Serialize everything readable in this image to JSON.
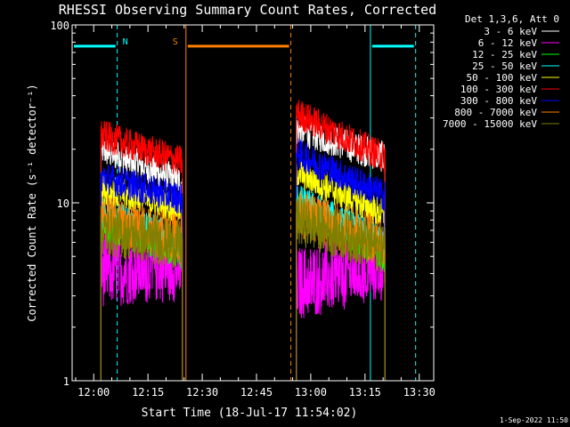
{
  "chart_data": {
    "type": "line",
    "title": "RHESSI Observing Summary Count Rates, Corrected",
    "xlabel": "Start Time (18-Jul-17 11:54:02)",
    "ylabel": "Corrected Count Rate (s⁻¹ detector⁻¹)",
    "y_scale": "log",
    "ylim": [
      1,
      100
    ],
    "xlim": [
      "11:54:02",
      "13:34:00"
    ],
    "x_ticks": [
      "12:00",
      "12:15",
      "12:30",
      "12:45",
      "13:00",
      "13:15",
      "13:30"
    ],
    "y_ticks": [
      "1",
      "10",
      "100"
    ],
    "grid": false,
    "legend_title": "Det 1,3,6, Att 0",
    "legend_position": "top-right",
    "footer": "1-Sep-2022 11:50",
    "flags": [
      {
        "label": "N",
        "color": "#00ffff",
        "level": 76,
        "segments": [
          [
            "11:54:02",
            "12:06:30"
          ],
          [
            "13:16:30",
            "13:29:00"
          ]
        ]
      },
      {
        "label": "S",
        "color": "#ff8000",
        "level": 76,
        "segments": [
          [
            "12:25:30",
            "12:54:30"
          ]
        ]
      }
    ],
    "vlines": [
      {
        "x": "11:54:02",
        "color": "#00ffff",
        "style": "solid"
      },
      {
        "x": "12:06:30",
        "color": "#00ffff",
        "style": "dashed"
      },
      {
        "x": "12:25:30",
        "color": "#ff8000",
        "style": "solid"
      },
      {
        "x": "12:54:30",
        "color": "#ff8000",
        "style": "dashed"
      },
      {
        "x": "13:16:30",
        "color": "#00ffff",
        "style": "solid"
      },
      {
        "x": "13:29:00",
        "color": "#00ffff",
        "style": "dashed"
      }
    ],
    "intervals": [
      [
        "12:02:00",
        "12:24:30"
      ],
      [
        "12:56:00",
        "13:20:30"
      ]
    ],
    "series": [
      {
        "name": "3 - 6 keV",
        "color": "#ffffff",
        "start": [
          20,
          26
        ],
        "end": [
          13,
          18
        ]
      },
      {
        "name": "6 - 12 keV",
        "color": "#ff00ff",
        "start": [
          4.2,
          3.5
        ],
        "end": [
          4.5,
          4.5
        ]
      },
      {
        "name": "12 - 25 keV",
        "color": "#00ff00",
        "start": [
          7.5,
          10
        ],
        "end": [
          5.2,
          5.0
        ]
      },
      {
        "name": "25 - 50 keV",
        "color": "#00ffff",
        "start": [
          8.8,
          10.5
        ],
        "end": [
          6.2,
          6.0
        ]
      },
      {
        "name": "50 - 100 keV",
        "color": "#ffff00",
        "start": [
          12,
          15
        ],
        "end": [
          9.2,
          8.5
        ]
      },
      {
        "name": "100 - 300 keV",
        "color": "#ff0000",
        "start": [
          24,
          32
        ],
        "end": [
          17,
          18
        ]
      },
      {
        "name": "300 - 800 keV",
        "color": "#0000ff",
        "start": [
          14,
          19
        ],
        "end": [
          10.5,
          11
        ]
      },
      {
        "name": "800 - 7000 keV",
        "color": "#ff8000",
        "start": [
          8.2,
          8.8
        ],
        "end": [
          6.2,
          6.0
        ]
      },
      {
        "name": "7000 - 15000 keV",
        "color": "#808000",
        "start": [
          7.0,
          8.0
        ],
        "end": [
          5.8,
          5.5
        ]
      }
    ]
  }
}
